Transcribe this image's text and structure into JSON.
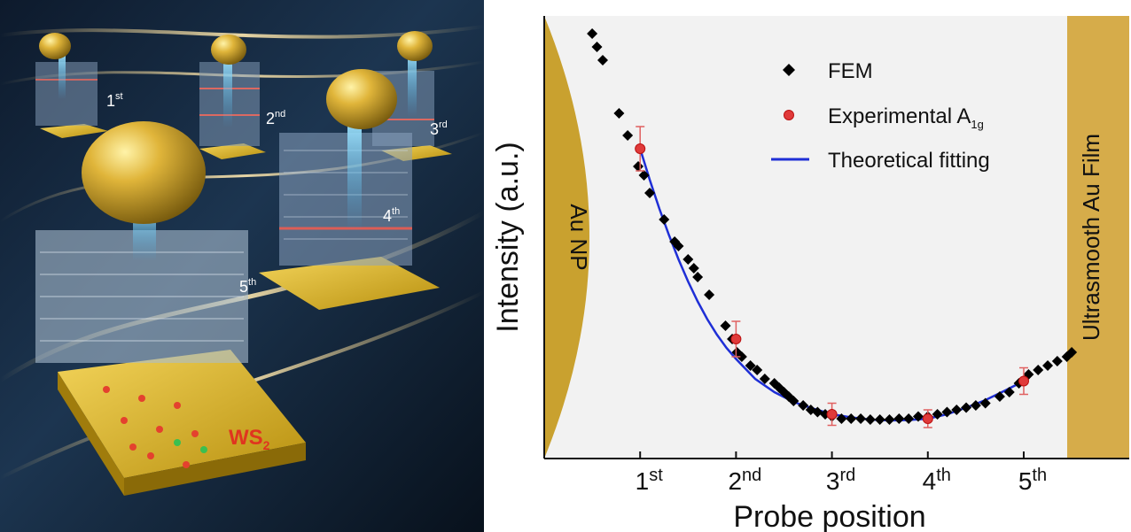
{
  "illustration": {
    "probe_labels": [
      {
        "num": "1",
        "sup": "st"
      },
      {
        "num": "2",
        "sup": "nd"
      },
      {
        "num": "3",
        "sup": "rd"
      },
      {
        "num": "4",
        "sup": "th"
      },
      {
        "num": "5",
        "sup": "th"
      }
    ],
    "material": {
      "main": "WS",
      "sub": "2"
    }
  },
  "chart_data": {
    "type": "scatter",
    "xlabel": "Probe position",
    "ylabel": "Intensity (a.u.)",
    "x_ticks": [
      {
        "value": 1,
        "num": "1",
        "sup": "st"
      },
      {
        "value": 2,
        "num": "2",
        "sup": "nd"
      },
      {
        "value": 3,
        "num": "3",
        "sup": "rd"
      },
      {
        "value": 4,
        "num": "4",
        "sup": "th"
      },
      {
        "value": 5,
        "num": "5",
        "sup": "th"
      }
    ],
    "xlim": [
      0,
      6.1
    ],
    "ylim": [
      0,
      1.0
    ],
    "regions": {
      "left": "Au NP",
      "right": "Ultrasmooth Au Film"
    },
    "legend": {
      "placement": "top-right",
      "entries": [
        {
          "label": "FEM",
          "marker": "diamond",
          "color": "#000000"
        },
        {
          "label": "Experimental A",
          "sub": "1g",
          "marker": "circle",
          "color": "#e03a3a"
        },
        {
          "label": "Theoretical fitting",
          "marker": "line",
          "color": "#1f2fd6"
        }
      ]
    },
    "series": [
      {
        "name": "FEM",
        "marker": "diamond",
        "color": "#000000",
        "x": [
          0.5,
          0.55,
          0.61,
          0.78,
          0.87,
          0.98,
          1.04,
          1.1,
          1.25,
          1.36,
          1.4,
          1.5,
          1.56,
          1.6,
          1.72,
          1.89,
          1.96,
          2.01,
          2.06,
          2.15,
          2.22,
          2.3,
          2.4,
          2.45,
          2.5,
          2.55,
          2.6,
          2.7,
          2.78,
          2.85,
          2.93,
          3.0,
          3.1,
          3.2,
          3.3,
          3.4,
          3.5,
          3.6,
          3.7,
          3.8,
          3.9,
          4.0,
          4.1,
          4.2,
          4.3,
          4.4,
          4.5,
          4.6,
          4.75,
          4.85,
          4.95,
          5.05,
          5.15,
          5.25,
          5.35,
          5.45,
          5.5
        ],
        "y": [
          0.96,
          0.93,
          0.9,
          0.78,
          0.73,
          0.66,
          0.64,
          0.6,
          0.54,
          0.49,
          0.48,
          0.45,
          0.43,
          0.41,
          0.37,
          0.3,
          0.27,
          0.24,
          0.23,
          0.21,
          0.2,
          0.18,
          0.17,
          0.16,
          0.15,
          0.14,
          0.13,
          0.12,
          0.11,
          0.105,
          0.1,
          0.095,
          0.09,
          0.09,
          0.09,
          0.088,
          0.088,
          0.088,
          0.09,
          0.09,
          0.095,
          0.095,
          0.1,
          0.105,
          0.11,
          0.115,
          0.12,
          0.125,
          0.14,
          0.15,
          0.17,
          0.19,
          0.2,
          0.21,
          0.22,
          0.23,
          0.24
        ]
      },
      {
        "name": "Experimental A1g",
        "marker": "circle",
        "color": "#e03a3a",
        "x": [
          1,
          2,
          3,
          4,
          5
        ],
        "y": [
          0.7,
          0.27,
          0.1,
          0.09,
          0.175
        ],
        "err": [
          0.05,
          0.04,
          0.025,
          0.02,
          0.03
        ]
      },
      {
        "name": "Theoretical fitting",
        "marker": "line",
        "color": "#1f2fd6",
        "x": [
          1.0,
          1.1,
          1.2,
          1.3,
          1.4,
          1.5,
          1.6,
          1.7,
          1.8,
          1.9,
          2.0,
          2.2,
          2.4,
          2.6,
          2.8,
          3.0,
          3.2,
          3.4,
          3.6,
          3.8,
          4.0,
          4.2,
          4.4,
          4.6,
          4.8,
          5.0
        ],
        "y": [
          0.7,
          0.63,
          0.565,
          0.505,
          0.45,
          0.4,
          0.355,
          0.315,
          0.28,
          0.25,
          0.225,
          0.18,
          0.15,
          0.128,
          0.113,
          0.1,
          0.093,
          0.088,
          0.086,
          0.087,
          0.09,
          0.1,
          0.115,
          0.132,
          0.153,
          0.175
        ]
      }
    ]
  }
}
